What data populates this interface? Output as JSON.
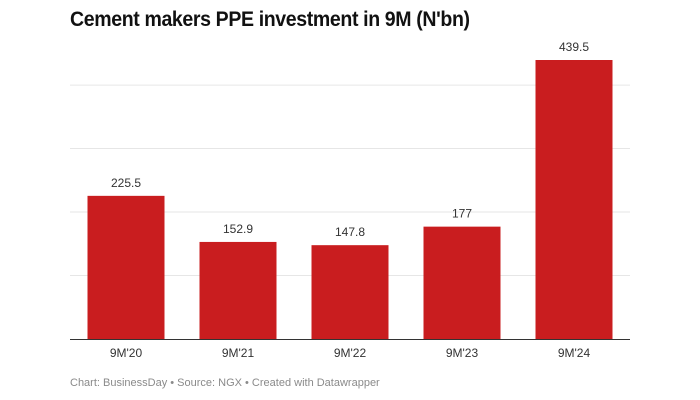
{
  "chart_data": {
    "type": "bar",
    "title": "Cement makers PPE investment in 9M (N'bn)",
    "categories": [
      "9M'20",
      "9M'21",
      "9M'22",
      "9M'23",
      "9M'24"
    ],
    "values": [
      225.5,
      152.9,
      147.8,
      177,
      439.5
    ],
    "value_labels": [
      "225.5",
      "152.9",
      "147.8",
      "177",
      "439.5"
    ],
    "ylim": [
      0,
      440
    ],
    "gridlines": [
      100,
      200,
      300,
      400
    ],
    "grid": true,
    "bar_color": "#c91d1f",
    "xlabel": "",
    "ylabel": ""
  },
  "footer": "Chart: BusinessDay • Source: NGX • Created with Datawrapper"
}
